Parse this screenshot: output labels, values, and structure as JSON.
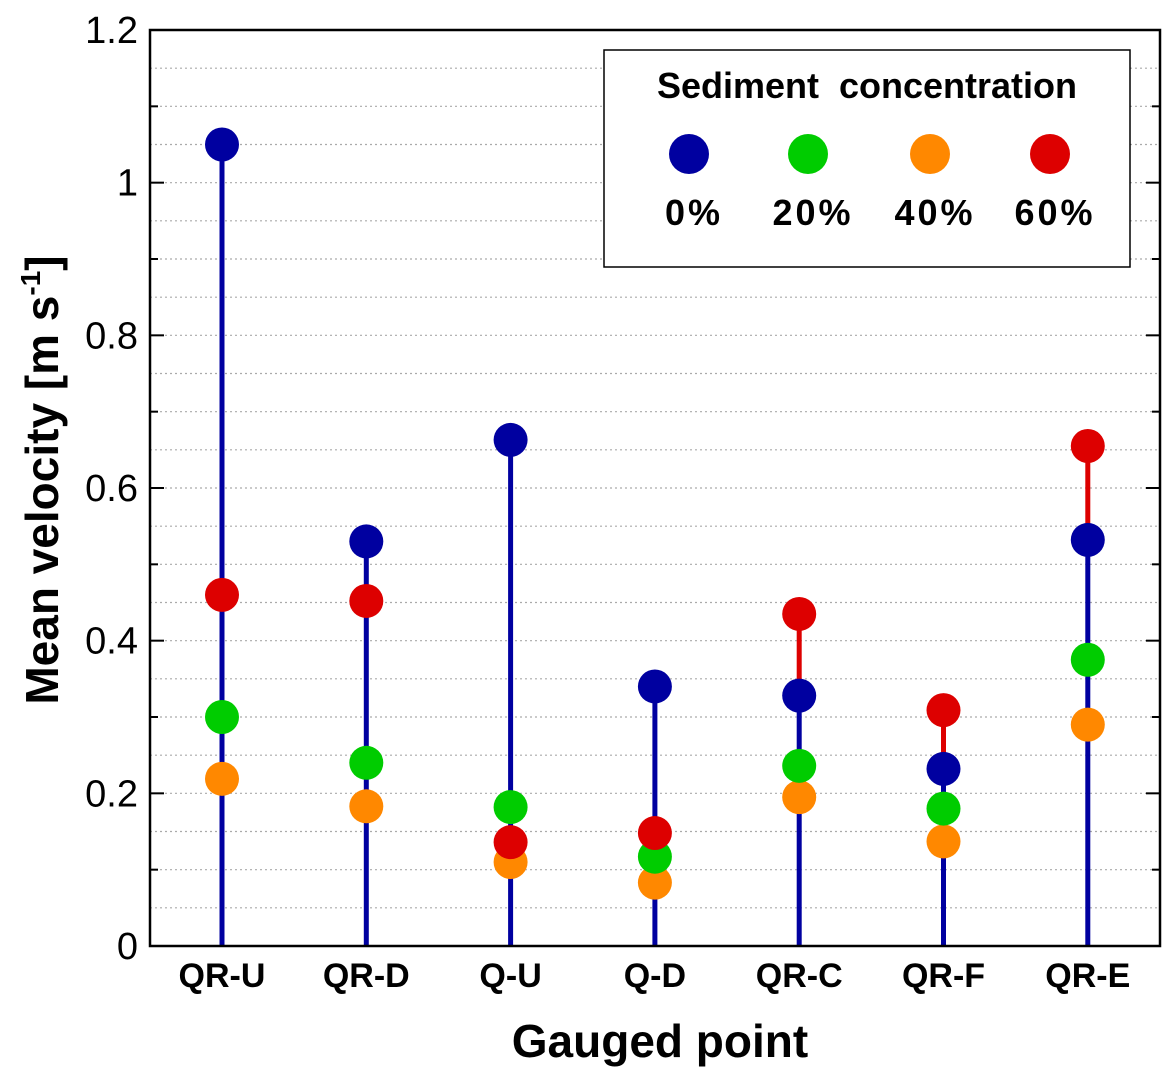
{
  "chart_data": {
    "type": "scatter",
    "categories": [
      "QR-U",
      "QR-D",
      "Q-U",
      "Q-D",
      "QR-C",
      "QR-F",
      "QR-E"
    ],
    "series": [
      {
        "name": "0%",
        "color": "#0000a0",
        "values": [
          1.05,
          0.53,
          0.663,
          0.34,
          0.328,
          0.232,
          0.532
        ]
      },
      {
        "name": "20%",
        "color": "#00cc00",
        "values": [
          0.3,
          0.24,
          0.182,
          0.117,
          0.236,
          0.18,
          0.375
        ]
      },
      {
        "name": "40%",
        "color": "#ff8800",
        "values": [
          0.219,
          0.183,
          0.11,
          0.083,
          0.195,
          0.137,
          0.29
        ]
      },
      {
        "name": "60%",
        "color": "#dd0000",
        "values": [
          0.46,
          0.452,
          0.136,
          0.148,
          0.435,
          0.309,
          0.655
        ]
      }
    ],
    "title": "",
    "xlabel": "Gauged point",
    "ylabel_main": "Mean velocity [m s",
    "ylabel_sup": "-1",
    "ylabel_end": "]",
    "ylim": [
      0,
      1.2
    ],
    "yticks": [
      "0",
      "0.2",
      "0.4",
      "0.6",
      "0.8",
      "1",
      "1.2"
    ],
    "grid": "dotted horizontal minor",
    "legend": {
      "title": "Sediment  concentration",
      "labels": [
        "0%",
        "20%",
        "40%",
        "60%"
      ],
      "position": "top-right"
    }
  }
}
